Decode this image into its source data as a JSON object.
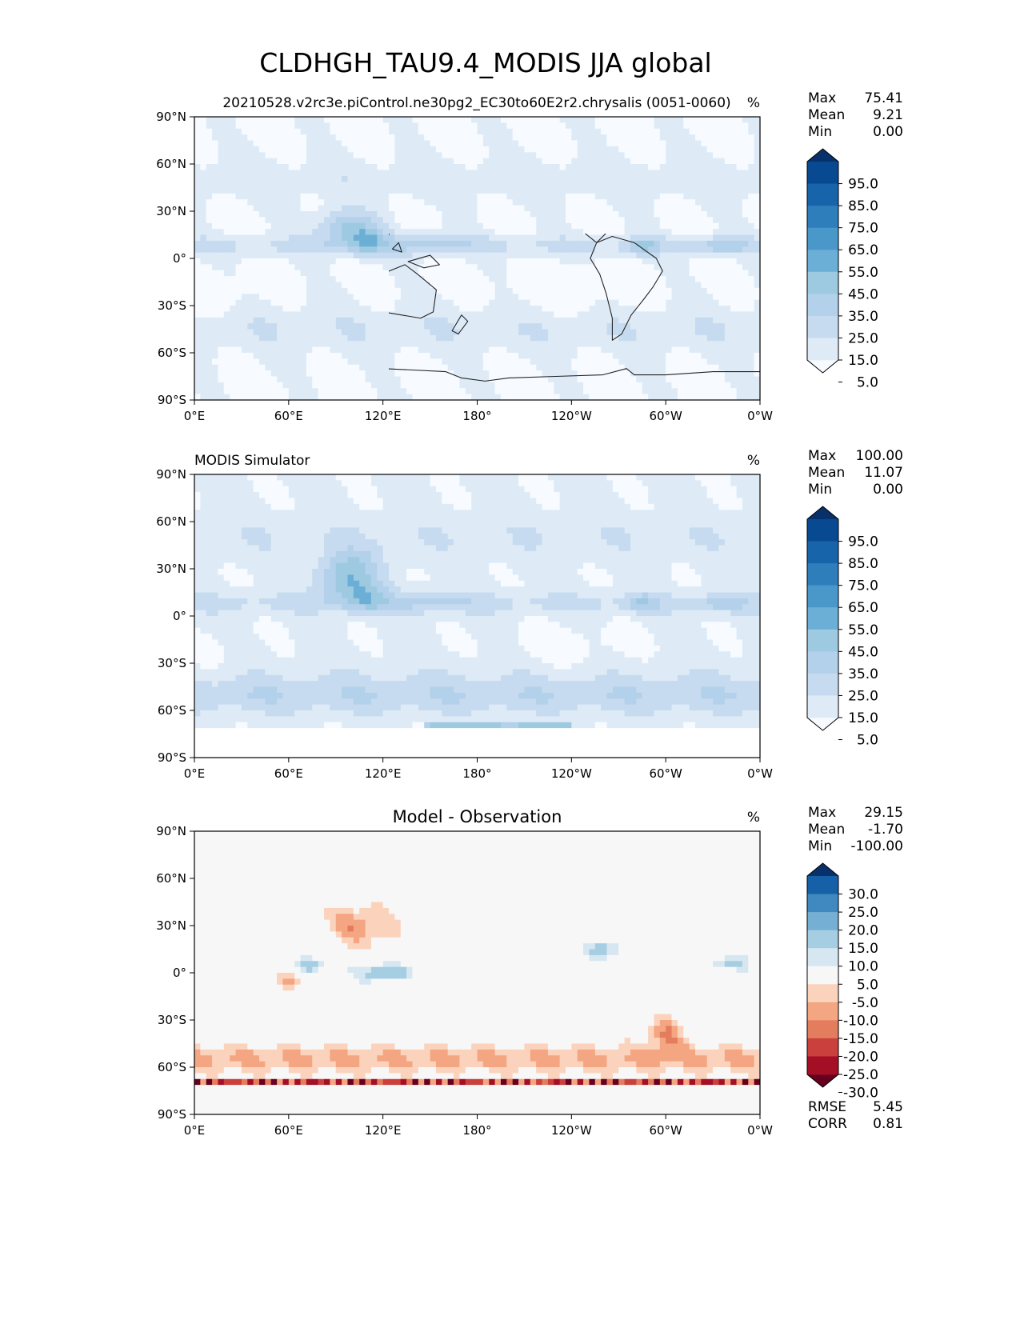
{
  "figure": {
    "title": "CLDHGH_TAU9.4_MODIS JJA global"
  },
  "colors": {
    "blues": [
      "#f7fbff",
      "#deebf7",
      "#c6dbef",
      "#b3d1ea",
      "#9ecae1",
      "#6baed6",
      "#4a98c9",
      "#2f7ebc",
      "#1764ab",
      "#084a91",
      "#08306b"
    ],
    "diff": [
      "#67001f",
      "#a50f26",
      "#c9403c",
      "#e47c5e",
      "#f4a582",
      "#fbd3bd",
      "#f7f7f7",
      "#d6e7f1",
      "#a6cee3",
      "#75afd3",
      "#3f89c0",
      "#1660a8",
      "#08306b"
    ]
  },
  "chart_data": [
    {
      "type": "heatmap",
      "title": "20210528.v2rc3e.piControl.ne30pg2_EC30to60E2r2.chrysalis (0051-0060)",
      "units": "%",
      "colormap": "blues",
      "xticks": [
        "0°E",
        "60°E",
        "120°E",
        "180°",
        "120°W",
        "60°W",
        "0°W"
      ],
      "yticks": [
        "90°N",
        "60°N",
        "30°N",
        "0°",
        "30°S",
        "60°S",
        "90°S"
      ],
      "xlim": [
        0,
        360
      ],
      "ylim": [
        -90,
        90
      ],
      "levels": [
        "95.0",
        "85.0",
        "75.0",
        "65.0",
        "55.0",
        "45.0",
        "35.0",
        "25.0",
        "15.0",
        "5.0"
      ],
      "stats": [
        {
          "label": "Max",
          "value": "75.41"
        },
        {
          "label": "Mean",
          "value": "9.21"
        },
        {
          "label": "Min",
          "value": "0.00"
        }
      ]
    },
    {
      "type": "heatmap",
      "title": "MODIS Simulator",
      "units": "%",
      "colormap": "blues",
      "xticks": [
        "0°E",
        "60°E",
        "120°E",
        "180°",
        "120°W",
        "60°W",
        "0°W"
      ],
      "yticks": [
        "90°N",
        "60°N",
        "30°N",
        "0°",
        "30°S",
        "60°S",
        "90°S"
      ],
      "xlim": [
        0,
        360
      ],
      "ylim": [
        -90,
        90
      ],
      "levels": [
        "95.0",
        "85.0",
        "75.0",
        "65.0",
        "55.0",
        "45.0",
        "35.0",
        "25.0",
        "15.0",
        "5.0"
      ],
      "stats": [
        {
          "label": "Max",
          "value": "100.00"
        },
        {
          "label": "Mean",
          "value": "11.07"
        },
        {
          "label": "Min",
          "value": "0.00"
        }
      ]
    },
    {
      "type": "heatmap",
      "title": "Model - Observation",
      "units": "%",
      "colormap": "diff",
      "xticks": [
        "0°E",
        "60°E",
        "120°E",
        "180°",
        "120°W",
        "60°W",
        "0°W"
      ],
      "yticks": [
        "90°N",
        "60°N",
        "30°N",
        "0°",
        "30°S",
        "60°S",
        "90°S"
      ],
      "xlim": [
        0,
        360
      ],
      "ylim": [
        -90,
        90
      ],
      "levels": [
        "30.0",
        "25.0",
        "20.0",
        "15.0",
        "10.0",
        "5.0",
        "-5.0",
        "-10.0",
        "-15.0",
        "-20.0",
        "-25.0",
        "-30.0"
      ],
      "stats": [
        {
          "label": "Max",
          "value": "29.15"
        },
        {
          "label": "Mean",
          "value": "-1.70"
        },
        {
          "label": "Min",
          "value": "-100.00"
        }
      ],
      "metrics": [
        {
          "label": "RMSE",
          "value": "5.45"
        },
        {
          "label": "CORR",
          "value": "0.81"
        }
      ]
    }
  ]
}
